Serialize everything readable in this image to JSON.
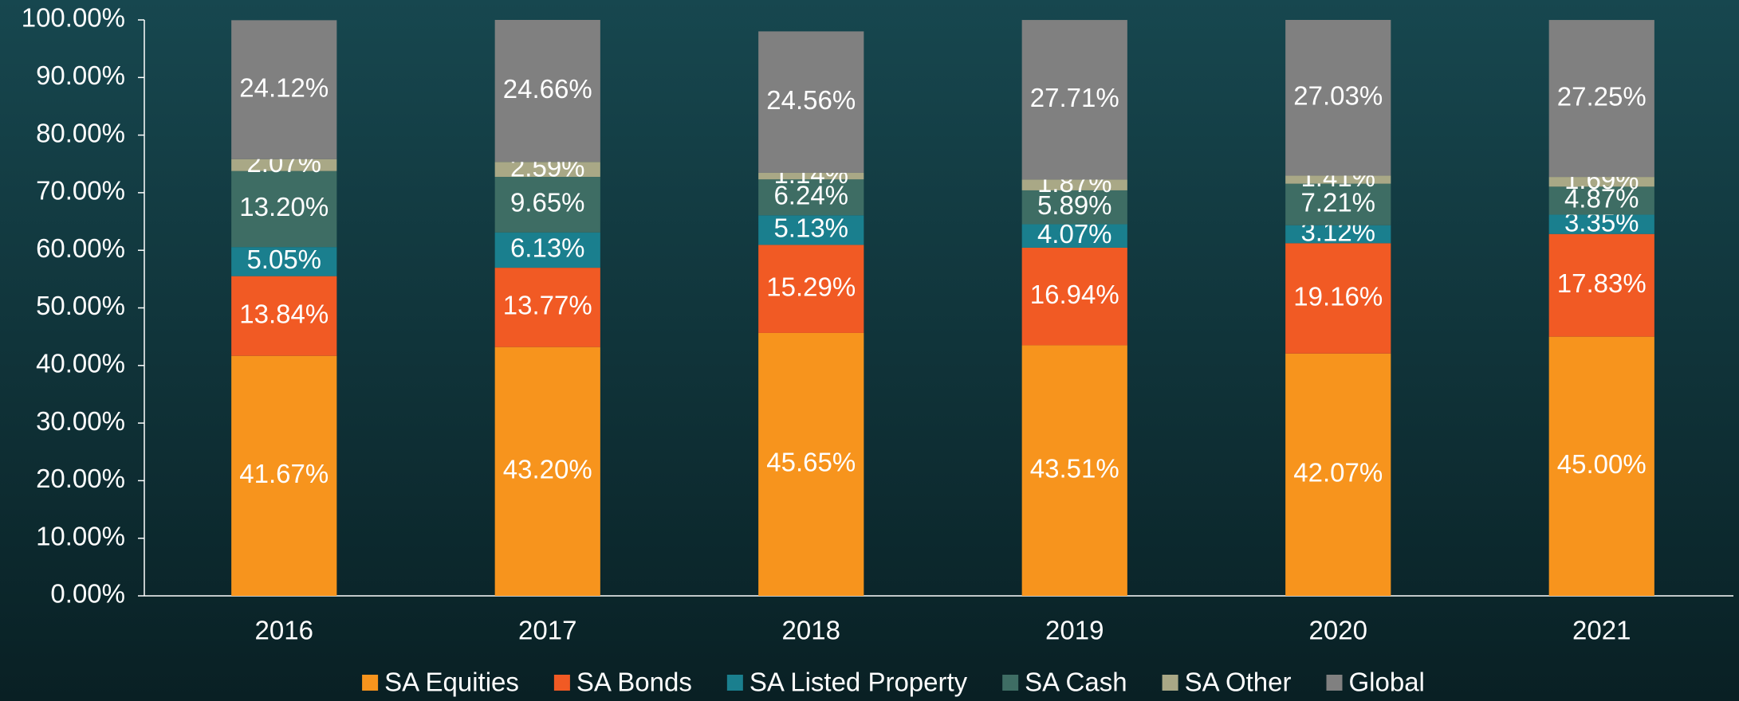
{
  "chart_data": {
    "type": "stacked-bar",
    "categories": [
      "2016",
      "2017",
      "2018",
      "2019",
      "2020",
      "2021"
    ],
    "series": [
      {
        "name": "SA Equities",
        "color": "#f7941d",
        "values": [
          41.67,
          43.2,
          45.65,
          43.51,
          42.07,
          45.0
        ],
        "value_labels": [
          "41.67%",
          "43.20%",
          "45.65%",
          "43.51%",
          "42.07%",
          "45.00%"
        ]
      },
      {
        "name": "SA Bonds",
        "color": "#f15a24",
        "values": [
          13.84,
          13.77,
          15.29,
          16.94,
          19.16,
          17.83
        ],
        "value_labels": [
          "13.84%",
          "13.77%",
          "15.29%",
          "16.94%",
          "19.16%",
          "17.83%"
        ]
      },
      {
        "name": "SA Listed Property",
        "color": "#1a7f8e",
        "values": [
          5.05,
          6.13,
          5.13,
          4.07,
          3.12,
          3.35
        ],
        "value_labels": [
          "5.05%",
          "6.13%",
          "5.13%",
          "4.07%",
          "3.12%",
          "3.35%"
        ]
      },
      {
        "name": "SA Cash",
        "color": "#3e6d64",
        "values": [
          13.2,
          9.65,
          6.24,
          5.89,
          7.21,
          4.87
        ],
        "value_labels": [
          "13.20%",
          "9.65%",
          "6.24%",
          "5.89%",
          "7.21%",
          "4.87%"
        ]
      },
      {
        "name": "SA Other",
        "color": "#a9a886",
        "values": [
          2.07,
          2.59,
          1.14,
          1.87,
          1.41,
          1.69
        ],
        "value_labels": [
          "2.07%",
          "2.59%",
          "1.14%",
          "1.87%",
          "1.41%",
          "1.69%"
        ]
      },
      {
        "name": "Global",
        "color": "#808080",
        "values": [
          24.12,
          24.66,
          24.56,
          27.71,
          27.03,
          27.25
        ],
        "value_labels": [
          "24.12%",
          "24.66%",
          "24.56%",
          "27.71%",
          "27.03%",
          "27.25%"
        ]
      }
    ],
    "ylim": [
      0,
      100
    ],
    "yticks": [
      {
        "value": 0,
        "label": "0.00%"
      },
      {
        "value": 10,
        "label": "10.00%"
      },
      {
        "value": 20,
        "label": "20.00%"
      },
      {
        "value": 30,
        "label": "30.00%"
      },
      {
        "value": 40,
        "label": "40.00%"
      },
      {
        "value": 50,
        "label": "50.00%"
      },
      {
        "value": 60,
        "label": "60.00%"
      },
      {
        "value": 70,
        "label": "70.00%"
      },
      {
        "value": 80,
        "label": "80.00%"
      },
      {
        "value": 90,
        "label": "90.00%"
      },
      {
        "value": 100,
        "label": "100.00%"
      }
    ],
    "legend": "bottom"
  }
}
